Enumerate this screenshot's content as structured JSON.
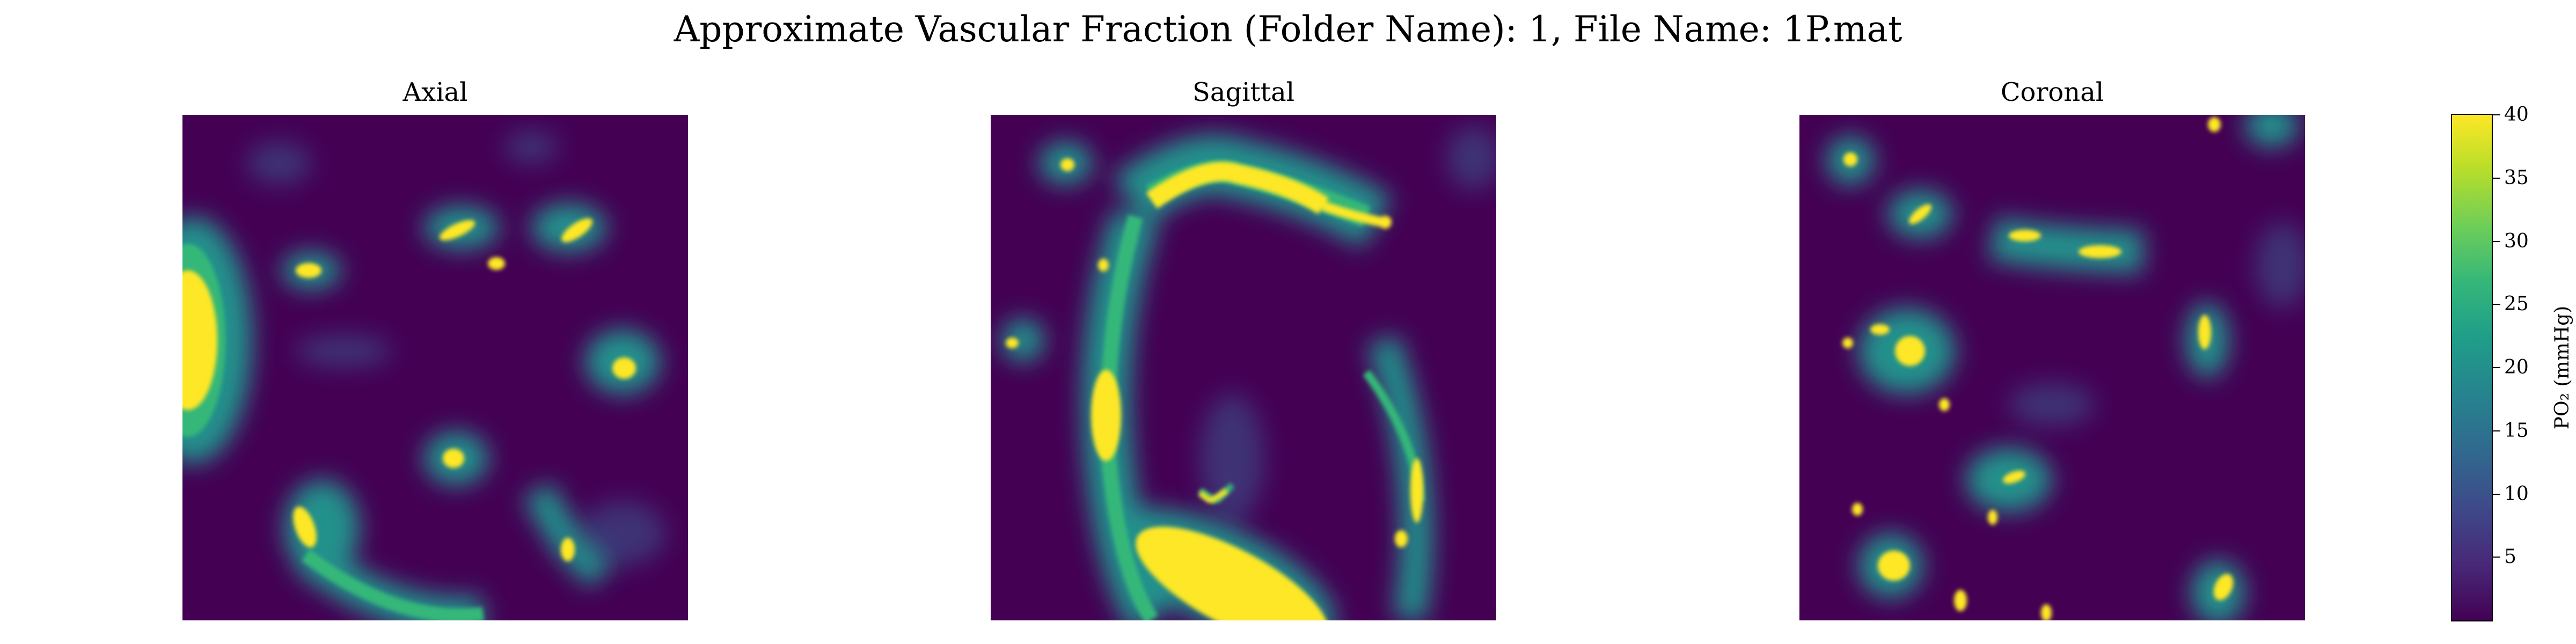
{
  "figure": {
    "suptitle": "Approximate Vascular Fraction (Folder Name): 1, File Name: 1P.mat"
  },
  "panels": [
    {
      "title": "Axial"
    },
    {
      "title": "Sagittal"
    },
    {
      "title": "Coronal"
    }
  ],
  "colorbar": {
    "label": "PO₂ (mmHg)",
    "colormap": "viridis",
    "range": [
      0,
      40
    ],
    "ticks": [
      5,
      10,
      15,
      20,
      25,
      30,
      35,
      40
    ]
  },
  "chart_data": [
    {
      "type": "heatmap",
      "title": "Axial",
      "colormap": "viridis",
      "value_range": [
        0,
        40
      ],
      "background_value": 0,
      "features": "Large bright vessel on the left edge; several small bright vessel segments scattered throughout"
    },
    {
      "type": "heatmap",
      "title": "Sagittal",
      "colormap": "viridis",
      "value_range": [
        0,
        40
      ],
      "background_value": 0,
      "features": "Curved vessel arching from top into left side, large bright vessel near the bottom, thin vessels on the right"
    },
    {
      "type": "heatmap",
      "title": "Coronal",
      "colormap": "viridis",
      "value_range": [
        0,
        40
      ],
      "background_value": 0,
      "features": "Many small bright vessel cross-sections scattered across the slice"
    }
  ]
}
